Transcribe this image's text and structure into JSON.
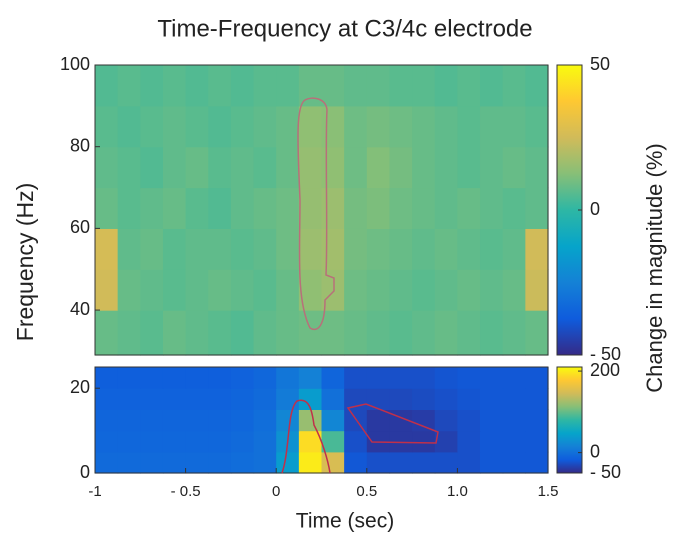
{
  "chart_data": {
    "type": "heatmap",
    "title": "Time-Frequency at C3/4c electrode",
    "xlabel": "Time (sec)",
    "ylabel": "Frequency (Hz)",
    "colorbar_label": "Change in magnitude (%)",
    "xlim": [
      -1,
      1.5
    ],
    "xticks": [
      -1,
      {
        "value": -0.5,
        "label": "- 0.5"
      },
      0,
      0.5,
      {
        "value": 1,
        "label": "1.0"
      },
      1.5
    ],
    "x_edges": [
      -1,
      -0.875,
      -0.75,
      -0.625,
      -0.5,
      -0.375,
      -0.25,
      -0.125,
      0,
      0.125,
      0.25,
      0.375,
      0.5,
      0.625,
      0.75,
      0.875,
      1,
      1.125,
      1.25,
      1.375,
      1.5
    ],
    "panels": [
      {
        "ylim": [
          29,
          100
        ],
        "yticks": [
          40,
          60,
          80,
          100
        ],
        "y_edges": [
          29,
          40,
          50,
          60,
          70,
          80,
          90,
          100
        ],
        "clim": [
          -50,
          50
        ],
        "cticks": [
          50,
          0,
          {
            "value": -50,
            "label": "- 50"
          }
        ],
        "z": [
          [
            8,
            7,
            6,
            8,
            7,
            6,
            5,
            7,
            8,
            9,
            9,
            8,
            7,
            6,
            7,
            8,
            7,
            6,
            7,
            8
          ],
          [
            25,
            8,
            7,
            6,
            7,
            8,
            7,
            6,
            8,
            14,
            16,
            9,
            8,
            7,
            6,
            7,
            8,
            7,
            8,
            24
          ],
          [
            26,
            7,
            8,
            6,
            7,
            7,
            6,
            7,
            9,
            16,
            17,
            10,
            9,
            8,
            7,
            8,
            7,
            6,
            7,
            25
          ],
          [
            8,
            6,
            7,
            8,
            6,
            5,
            7,
            8,
            9,
            15,
            16,
            10,
            11,
            9,
            8,
            7,
            8,
            7,
            6,
            7
          ],
          [
            7,
            6,
            5,
            7,
            8,
            6,
            7,
            6,
            8,
            15,
            14,
            9,
            12,
            10,
            8,
            7,
            6,
            7,
            8,
            7
          ],
          [
            6,
            5,
            6,
            7,
            6,
            5,
            6,
            7,
            8,
            14,
            13,
            9,
            10,
            9,
            8,
            7,
            6,
            7,
            7,
            6
          ],
          [
            5,
            6,
            5,
            6,
            5,
            6,
            5,
            6,
            6,
            8,
            8,
            7,
            7,
            6,
            6,
            5,
            6,
            5,
            6,
            5
          ]
        ]
      },
      {
        "ylim": [
          0,
          25
        ],
        "yticks": [
          0,
          20
        ],
        "y_edges": [
          0,
          5,
          10,
          15,
          20,
          25
        ],
        "clim": [
          -50,
          210
        ],
        "cticks": [
          200,
          0,
          {
            "value": -50,
            "label": "- 50"
          }
        ],
        "z": [
          [
            -5,
            -5,
            -5,
            -5,
            -5,
            -5,
            -3,
            0,
            40,
            200,
            150,
            -20,
            -25,
            -25,
            -25,
            -25,
            -25,
            -20,
            -20,
            -20
          ],
          [
            -8,
            -8,
            -8,
            -8,
            -8,
            -8,
            -5,
            0,
            30,
            190,
            90,
            -25,
            -40,
            -40,
            -40,
            -35,
            -25,
            -20,
            -20,
            -20
          ],
          [
            -10,
            -10,
            -10,
            -10,
            -10,
            -10,
            -8,
            -2,
            20,
            120,
            20,
            -30,
            -40,
            -40,
            -38,
            -30,
            -25,
            -20,
            -20,
            -20
          ],
          [
            -12,
            -12,
            -12,
            -12,
            -12,
            -12,
            -10,
            -5,
            10,
            40,
            0,
            -30,
            -30,
            -30,
            -28,
            -25,
            -22,
            -20,
            -20,
            -20
          ],
          [
            -15,
            -15,
            -15,
            -15,
            -15,
            -15,
            -12,
            -8,
            5,
            15,
            -10,
            -25,
            -25,
            -25,
            -25,
            -22,
            -20,
            -20,
            -20,
            -20
          ]
        ]
      }
    ]
  }
}
